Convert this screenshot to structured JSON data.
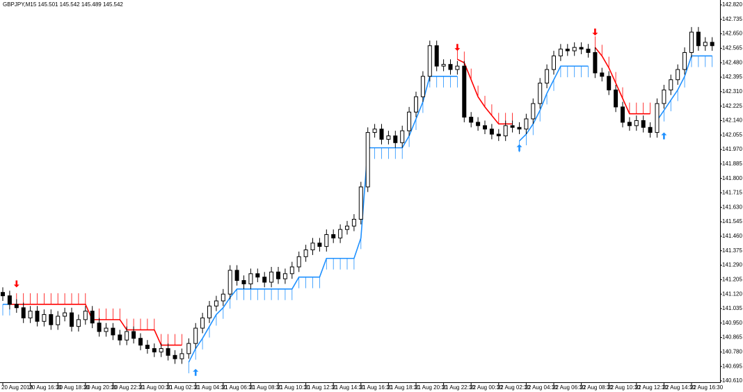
{
  "chart_data": {
    "type": "candlestick",
    "title": "GBPJPY,M15  145.501 145.542 145.489 145.542",
    "ylim": [
      140.61,
      142.82
    ],
    "yticks": [
      {
        "value": 142.82,
        "label": "142.820"
      },
      142.735,
      {
        "value": 142.65,
        "label": "142.650"
      },
      142.565,
      {
        "value": 142.48,
        "label": "142.480"
      },
      142.395,
      {
        "value": 142.31,
        "label": "142.310"
      },
      142.225,
      {
        "value": 142.14,
        "label": "142.140"
      },
      142.055,
      {
        "value": 141.97,
        "label": "141.970"
      },
      141.885,
      {
        "value": 141.8,
        "label": "141.800"
      },
      141.715,
      {
        "value": 141.63,
        "label": "141.630"
      },
      141.545,
      {
        "value": 141.46,
        "label": "141.460"
      },
      141.375,
      {
        "value": 141.29,
        "label": "141.290"
      },
      141.205,
      {
        "value": 141.12,
        "label": "141.120"
      },
      141.035,
      {
        "value": 140.95,
        "label": "140.950"
      },
      140.865,
      {
        "value": 140.78,
        "label": "140.780"
      },
      140.695,
      {
        "value": 140.61,
        "label": "140.610"
      }
    ],
    "categories": [
      "20 Aug 2018",
      null,
      null,
      null,
      "20 Aug 16:30",
      null,
      null,
      null,
      "20 Aug 18:30",
      null,
      null,
      null,
      "20 Aug 20:30",
      null,
      null,
      null,
      "20 Aug 22:30",
      null,
      null,
      null,
      "21 Aug 00:30",
      null,
      null,
      null,
      "21 Aug 02:30",
      null,
      null,
      null,
      "21 Aug 04:30",
      null,
      null,
      null,
      "21 Aug 06:30",
      null,
      null,
      null,
      "21 Aug 08:30",
      null,
      null,
      null,
      "21 Aug 10:30",
      null,
      null,
      null,
      "21 Aug 12:30",
      null,
      null,
      null,
      "21 Aug 14:30",
      null,
      null,
      null,
      "21 Aug 16:30",
      null,
      null,
      null,
      "21 Aug 18:30",
      null,
      null,
      null,
      "21 Aug 20:30",
      null,
      null,
      null,
      "21 Aug 22:30",
      null,
      null,
      null,
      "22 Aug 00:30",
      null,
      null,
      null,
      "22 Aug 02:30",
      null,
      null,
      null,
      "22 Aug 04:30",
      null,
      null,
      null,
      "22 Aug 06:30",
      null,
      null,
      null,
      "22 Aug 08:30",
      null,
      null,
      null,
      "22 Aug 10:30",
      null,
      null,
      null,
      "22 Aug 12:30",
      null,
      null,
      null,
      "22 Aug 14:30",
      null,
      null,
      null,
      "22 Aug 16:30",
      null,
      null,
      null
    ],
    "open": [
      141.13,
      141.11,
      141.06,
      141.04,
      140.98,
      141.02,
      140.96,
      141.0,
      140.94,
      140.99,
      141.01,
      140.93,
      140.97,
      141.02,
      140.95,
      140.9,
      140.92,
      140.88,
      140.85,
      140.9,
      140.86,
      140.82,
      140.8,
      140.78,
      140.8,
      140.76,
      140.74,
      140.77,
      140.83,
      140.92,
      140.98,
      141.05,
      141.08,
      141.12,
      141.26,
      141.2,
      141.18,
      141.24,
      141.22,
      141.19,
      141.25,
      141.21,
      141.24,
      141.28,
      141.34,
      141.38,
      141.42,
      141.4,
      141.47,
      141.45,
      141.5,
      141.52,
      141.56,
      141.75,
      142.07,
      142.09,
      142.03,
      142.05,
      142.01,
      142.08,
      142.19,
      142.28,
      142.4,
      142.58,
      142.46,
      142.47,
      142.44,
      142.46,
      142.16,
      142.13,
      142.11,
      142.09,
      142.06,
      142.05,
      142.11,
      142.1,
      142.09,
      142.15,
      142.24,
      142.36,
      142.44,
      142.52,
      142.56,
      142.55,
      142.57,
      142.56,
      142.54,
      142.42,
      142.4,
      142.32,
      142.22,
      142.13,
      142.11,
      142.14,
      142.1,
      142.07,
      142.24,
      142.32,
      142.38,
      142.44,
      142.54,
      142.66,
      142.58,
      142.6
    ],
    "high": [
      141.16,
      141.14,
      141.09,
      141.07,
      141.05,
      141.05,
      141.03,
      141.03,
      141.02,
      141.04,
      141.04,
      141.0,
      141.05,
      141.05,
      140.98,
      140.95,
      140.95,
      140.91,
      140.93,
      140.93,
      140.89,
      140.85,
      140.83,
      140.83,
      140.83,
      140.79,
      140.8,
      140.86,
      140.95,
      141.01,
      141.08,
      141.11,
      141.15,
      141.29,
      141.29,
      141.23,
      141.27,
      141.27,
      141.25,
      141.28,
      141.28,
      141.27,
      141.31,
      141.37,
      141.41,
      141.45,
      141.45,
      141.5,
      141.5,
      141.53,
      141.55,
      141.59,
      141.78,
      142.1,
      142.12,
      142.12,
      142.08,
      142.08,
      142.11,
      142.22,
      142.31,
      142.43,
      142.61,
      142.61,
      142.5,
      142.5,
      142.49,
      142.49,
      142.19,
      142.16,
      142.14,
      142.12,
      142.09,
      142.14,
      142.14,
      142.13,
      142.18,
      142.27,
      142.39,
      142.47,
      142.55,
      142.59,
      142.59,
      142.6,
      142.6,
      142.59,
      142.57,
      142.45,
      142.43,
      142.35,
      142.25,
      142.16,
      142.17,
      142.17,
      142.13,
      142.27,
      142.35,
      142.41,
      142.47,
      142.57,
      142.69,
      142.69,
      142.63,
      142.63
    ],
    "low": [
      141.08,
      141.03,
      141.01,
      140.95,
      140.95,
      140.93,
      140.93,
      140.91,
      140.91,
      140.96,
      140.9,
      140.9,
      140.94,
      140.92,
      140.87,
      140.87,
      140.85,
      140.82,
      140.82,
      140.83,
      140.79,
      140.77,
      140.75,
      140.75,
      140.73,
      140.71,
      140.71,
      140.74,
      140.8,
      140.89,
      140.95,
      141.02,
      141.05,
      141.09,
      141.17,
      141.15,
      141.15,
      141.19,
      141.16,
      141.16,
      141.18,
      141.18,
      141.21,
      141.25,
      141.31,
      141.35,
      141.37,
      141.37,
      141.42,
      141.42,
      141.47,
      141.49,
      141.53,
      141.72,
      142.04,
      142.0,
      142.0,
      141.98,
      141.98,
      142.05,
      142.16,
      142.25,
      142.37,
      142.43,
      142.43,
      142.41,
      142.41,
      142.13,
      142.1,
      142.08,
      142.06,
      142.03,
      142.02,
      142.02,
      142.07,
      142.06,
      142.06,
      142.12,
      142.21,
      142.33,
      142.41,
      142.49,
      142.52,
      142.52,
      142.53,
      142.51,
      142.39,
      142.37,
      142.29,
      142.19,
      142.1,
      142.08,
      142.08,
      142.07,
      142.04,
      142.04,
      142.21,
      142.29,
      142.35,
      142.41,
      142.51,
      142.55,
      142.55,
      142.55
    ],
    "close": [
      141.11,
      141.06,
      141.04,
      140.98,
      141.02,
      140.96,
      141.0,
      140.94,
      140.99,
      141.01,
      140.93,
      140.97,
      141.02,
      140.95,
      140.9,
      140.92,
      140.88,
      140.85,
      140.9,
      140.86,
      140.82,
      140.8,
      140.78,
      140.8,
      140.76,
      140.74,
      140.77,
      140.83,
      140.92,
      140.98,
      141.05,
      141.08,
      141.12,
      141.26,
      141.2,
      141.18,
      141.24,
      141.22,
      141.19,
      141.25,
      141.21,
      141.24,
      141.28,
      141.34,
      141.38,
      141.42,
      141.4,
      141.47,
      141.45,
      141.5,
      141.52,
      141.56,
      141.75,
      142.07,
      142.09,
      142.03,
      142.05,
      142.01,
      142.08,
      142.19,
      142.28,
      142.4,
      142.58,
      142.46,
      142.47,
      142.44,
      142.46,
      142.16,
      142.13,
      142.11,
      142.09,
      142.06,
      142.05,
      142.11,
      142.1,
      142.09,
      142.15,
      142.24,
      142.36,
      142.44,
      142.52,
      142.56,
      142.55,
      142.57,
      142.56,
      142.54,
      142.42,
      142.4,
      142.32,
      142.22,
      142.13,
      142.11,
      142.14,
      142.1,
      142.07,
      142.24,
      142.32,
      142.38,
      142.44,
      142.54,
      142.66,
      142.58,
      142.6,
      142.58
    ],
    "series": [
      {
        "color": "#1e90ff",
        "values": [
          141.06,
          141.06,
          null,
          null,
          null,
          null,
          null,
          null,
          null,
          null,
          null,
          null,
          null,
          null,
          null,
          null,
          null,
          null,
          null,
          null,
          null,
          null,
          null,
          null,
          null,
          null,
          null,
          140.72,
          140.8,
          140.86,
          140.93,
          141.0,
          141.04,
          141.1,
          141.15,
          141.15,
          141.15,
          141.15,
          141.15,
          141.15,
          141.15,
          141.15,
          141.15,
          141.22,
          141.22,
          141.22,
          141.22,
          141.33,
          141.33,
          141.33,
          141.33,
          141.33,
          141.45,
          141.98,
          141.98,
          141.98,
          141.98,
          141.98,
          141.98,
          142.05,
          142.15,
          142.25,
          142.4,
          142.4,
          142.4,
          142.4,
          142.4,
          null,
          null,
          null,
          null,
          null,
          null,
          null,
          null,
          142.02,
          142.06,
          142.12,
          142.2,
          142.3,
          142.38,
          142.46,
          142.46,
          142.46,
          142.46,
          142.46,
          null,
          null,
          null,
          null,
          null,
          null,
          null,
          null,
          null,
          142.14,
          142.2,
          142.26,
          142.32,
          142.4,
          142.52,
          142.52,
          142.52,
          142.52
        ]
      },
      {
        "color": "#ff0000",
        "values": [
          null,
          141.06,
          141.06,
          141.06,
          141.06,
          141.06,
          141.06,
          141.06,
          141.06,
          141.06,
          141.06,
          141.06,
          141.06,
          140.97,
          140.97,
          140.97,
          140.97,
          140.97,
          140.91,
          140.91,
          140.91,
          140.91,
          140.91,
          140.82,
          140.82,
          140.82,
          140.82,
          null,
          null,
          null,
          null,
          null,
          null,
          null,
          null,
          null,
          null,
          null,
          null,
          null,
          null,
          null,
          null,
          null,
          null,
          null,
          null,
          null,
          null,
          null,
          null,
          null,
          null,
          null,
          null,
          null,
          null,
          null,
          null,
          null,
          null,
          null,
          null,
          null,
          null,
          null,
          142.5,
          142.48,
          142.38,
          142.28,
          142.22,
          142.17,
          142.12,
          142.12,
          142.12,
          null,
          null,
          null,
          null,
          null,
          null,
          null,
          null,
          null,
          null,
          null,
          142.57,
          142.52,
          142.45,
          142.36,
          142.27,
          142.18,
          142.18,
          142.18,
          142.18,
          null,
          null,
          null,
          null,
          null,
          null,
          null,
          null,
          null
        ]
      }
    ],
    "sell_arrows": {
      "color": "#ff0000",
      "values": [
        null,
        null,
        141.18,
        null,
        null,
        null,
        null,
        null,
        null,
        null,
        null,
        null,
        null,
        null,
        null,
        null,
        null,
        null,
        null,
        null,
        null,
        null,
        null,
        null,
        null,
        null,
        null,
        null,
        null,
        null,
        null,
        null,
        null,
        null,
        null,
        null,
        null,
        null,
        null,
        null,
        null,
        null,
        null,
        null,
        null,
        null,
        null,
        null,
        null,
        null,
        null,
        null,
        null,
        null,
        null,
        null,
        null,
        null,
        null,
        null,
        null,
        null,
        null,
        null,
        null,
        null,
        142.57,
        null,
        null,
        null,
        null,
        null,
        null,
        null,
        null,
        null,
        null,
        null,
        null,
        null,
        null,
        null,
        null,
        null,
        null,
        null,
        142.66,
        null,
        null,
        null,
        null,
        null,
        null,
        null,
        null,
        null,
        null,
        null,
        null,
        null,
        null,
        null,
        null,
        null
      ]
    },
    "buy_arrows": {
      "color": "#1e90ff",
      "values": [
        null,
        null,
        null,
        null,
        null,
        null,
        null,
        null,
        null,
        null,
        null,
        null,
        null,
        null,
        null,
        null,
        null,
        null,
        null,
        null,
        null,
        null,
        null,
        null,
        null,
        null,
        null,
        null,
        140.66,
        null,
        null,
        null,
        null,
        null,
        null,
        null,
        null,
        null,
        null,
        null,
        null,
        null,
        null,
        null,
        null,
        null,
        null,
        null,
        null,
        null,
        null,
        null,
        null,
        null,
        null,
        null,
        null,
        null,
        null,
        null,
        null,
        null,
        null,
        null,
        null,
        null,
        null,
        null,
        null,
        null,
        null,
        null,
        null,
        null,
        null,
        141.98,
        null,
        null,
        null,
        null,
        null,
        null,
        null,
        null,
        null,
        null,
        null,
        null,
        null,
        null,
        null,
        null,
        null,
        null,
        null,
        null,
        142.05,
        null,
        null,
        null,
        null,
        null,
        null,
        null
      ]
    }
  }
}
